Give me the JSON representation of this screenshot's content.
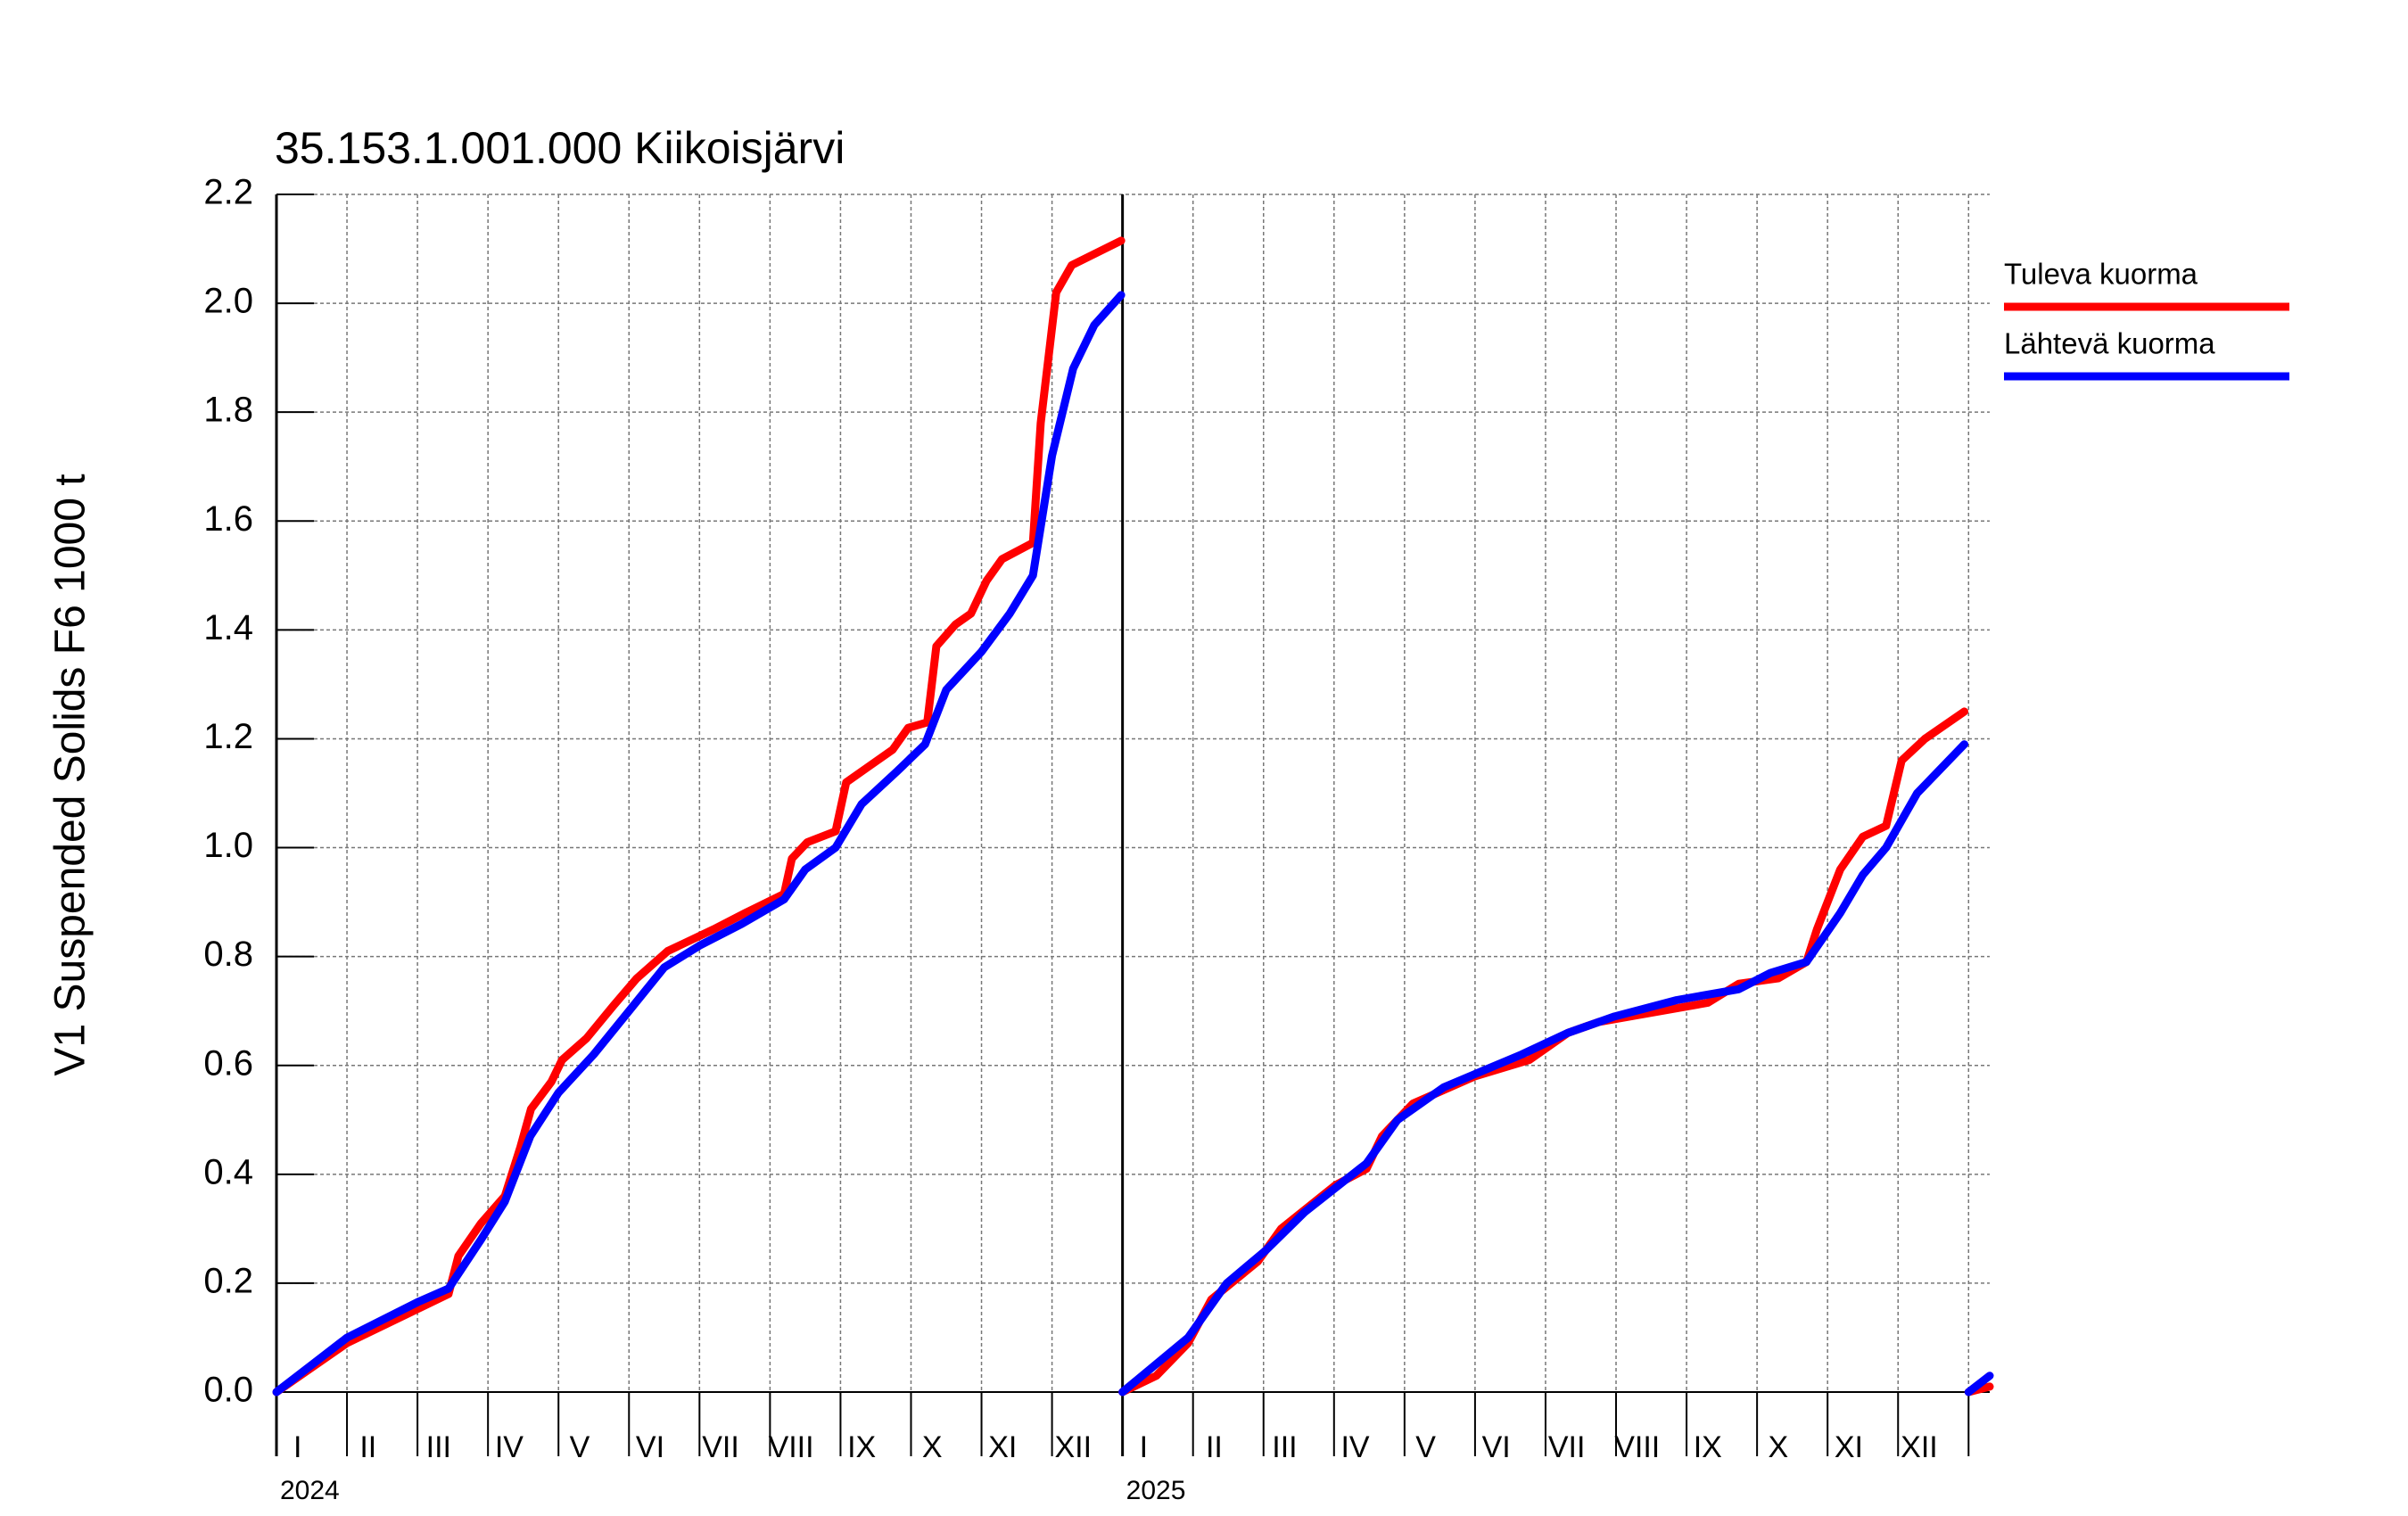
{
  "chart_data": {
    "type": "line",
    "title": "35.153.1.001.000 Kiikoisjärvi",
    "ylabel": "V1 Suspended Solids F6 1000 t",
    "xlim": [
      0,
      24.3
    ],
    "ylim": [
      0,
      2.2
    ],
    "yticks": [
      {
        "value": 0,
        "label": "0.0"
      },
      0.2,
      0.4,
      0.6,
      0.8,
      {
        "value": 1,
        "label": "1.0"
      },
      1.2,
      1.4,
      1.6,
      1.8,
      {
        "value": 2,
        "label": "2.0"
      },
      2.2
    ],
    "xticks": [
      {
        "value": 0,
        "label": "I"
      },
      {
        "value": 1,
        "label": "II"
      },
      {
        "value": 2,
        "label": "III"
      },
      {
        "value": 3,
        "label": "IV"
      },
      {
        "value": 4,
        "label": "V"
      },
      {
        "value": 5,
        "label": "VI"
      },
      {
        "value": 6,
        "label": "VII"
      },
      {
        "value": 7,
        "label": "VIII"
      },
      {
        "value": 8,
        "label": "IX"
      },
      {
        "value": 9,
        "label": "X"
      },
      {
        "value": 10,
        "label": "XI"
      },
      {
        "value": 11,
        "label": "XII"
      },
      {
        "value": 12,
        "label": "I"
      },
      {
        "value": 13,
        "label": "II"
      },
      {
        "value": 14,
        "label": "III"
      },
      {
        "value": 15,
        "label": "IV"
      },
      {
        "value": 16,
        "label": "V"
      },
      {
        "value": 17,
        "label": "VI"
      },
      {
        "value": 18,
        "label": "VII"
      },
      {
        "value": 19,
        "label": "VIII"
      },
      {
        "value": 20,
        "label": "IX"
      },
      {
        "value": 21,
        "label": "X"
      },
      {
        "value": 22,
        "label": "XI"
      },
      {
        "value": 23,
        "label": "XII"
      },
      24
    ],
    "year_labels": [
      {
        "value": 0,
        "label": "2024"
      },
      {
        "value": 12,
        "label": "2025"
      }
    ],
    "grid": true,
    "legend": "right",
    "series": [
      {
        "name": "Tuleva kuorma",
        "color": "#ff0000",
        "x": [
          0,
          1,
          1.96,
          2.44,
          2.58,
          2.9,
          3.24,
          3.46,
          3.61,
          3.9,
          4.05,
          4.4,
          4.78,
          5.11,
          5.55,
          6.2,
          6.65,
          7.2,
          7.31,
          7.53,
          7.93,
          8.08,
          8.41,
          8.74,
          8.96,
          9.23,
          9.36,
          9.63,
          9.85,
          10.07,
          10.29,
          10.73,
          10.84,
          11.06,
          11.28,
          11.98,
          null,
          12,
          12.48,
          12.93,
          13.26,
          13.92,
          14.25,
          15.02,
          15.46,
          15.68,
          16.12,
          17.0,
          17.77,
          18.32,
          18.76,
          19.64,
          20.3,
          20.74,
          21.3,
          21.7,
          21.85,
          22.18,
          22.5,
          22.83,
          23.05,
          23.38,
          23.94,
          null,
          24,
          24.3
        ],
        "values": [
          0,
          0.09,
          0.15,
          0.18,
          0.25,
          0.31,
          0.36,
          0.45,
          0.52,
          0.57,
          0.61,
          0.65,
          0.71,
          0.76,
          0.81,
          0.85,
          0.88,
          0.915,
          0.98,
          1.01,
          1.03,
          1.12,
          1.15,
          1.18,
          1.22,
          1.23,
          1.37,
          1.41,
          1.43,
          1.49,
          1.53,
          1.56,
          1.78,
          2.02,
          2.07,
          2.115,
          null,
          0,
          0.03,
          0.09,
          0.17,
          0.24,
          0.3,
          0.38,
          0.41,
          0.47,
          0.53,
          0.58,
          0.61,
          0.66,
          0.68,
          0.7,
          0.715,
          0.75,
          0.76,
          0.79,
          0.85,
          0.96,
          1.02,
          1.04,
          1.16,
          1.2,
          1.25,
          null,
          0,
          0.01
        ]
      },
      {
        "name": "Lähtevä kuorma",
        "color": "#0000ff",
        "x": [
          0,
          1,
          2,
          2.44,
          2.9,
          3.24,
          3.6,
          4.0,
          4.5,
          5.0,
          5.5,
          6.0,
          6.6,
          7.2,
          7.5,
          7.93,
          8.3,
          8.8,
          9.2,
          9.5,
          10.0,
          10.4,
          10.73,
          11.0,
          11.3,
          11.6,
          11.98,
          null,
          12,
          12.93,
          13.48,
          14.03,
          14.58,
          15.46,
          15.9,
          16.56,
          17.66,
          18.32,
          18.98,
          19.86,
          20.74,
          21.19,
          21.7,
          22.18,
          22.5,
          22.83,
          23.27,
          23.94,
          null,
          24,
          24.3
        ],
        "values": [
          0,
          0.1,
          0.165,
          0.19,
          0.28,
          0.35,
          0.47,
          0.55,
          0.62,
          0.7,
          0.78,
          0.82,
          0.86,
          0.905,
          0.96,
          1.0,
          1.08,
          1.14,
          1.19,
          1.29,
          1.36,
          1.43,
          1.5,
          1.72,
          1.88,
          1.96,
          2.015,
          null,
          0,
          0.1,
          0.2,
          0.26,
          0.33,
          0.42,
          0.5,
          0.56,
          0.62,
          0.66,
          0.69,
          0.72,
          0.74,
          0.77,
          0.79,
          0.88,
          0.95,
          1.0,
          1.1,
          1.19,
          null,
          0,
          0.03
        ]
      }
    ]
  }
}
